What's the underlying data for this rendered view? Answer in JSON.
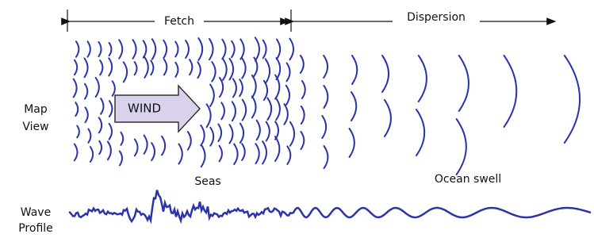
{
  "labels": {
    "fetch": "Fetch",
    "dispersion": "Dispersion",
    "map_view": [
      "Map",
      "View"
    ],
    "wind": "WIND",
    "seas": "Seas",
    "ocean_swell": "Ocean swell",
    "wave_profile": [
      "Wave",
      "Profile"
    ]
  }
}
